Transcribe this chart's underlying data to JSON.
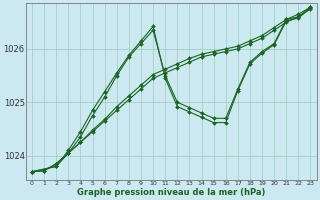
{
  "xlabel": "Graphe pression niveau de la mer (hPa)",
  "bg_color": "#cce8f0",
  "grid_color": "#99ccbb",
  "line_color": "#1a6620",
  "ylim": [
    1023.55,
    1026.85
  ],
  "xlim": [
    -0.5,
    23.5
  ],
  "yticks": [
    1024,
    1025,
    1026
  ],
  "xticks": [
    0,
    1,
    2,
    3,
    4,
    5,
    6,
    7,
    8,
    9,
    10,
    11,
    12,
    13,
    14,
    15,
    16,
    17,
    18,
    19,
    20,
    21,
    22,
    23
  ],
  "series": [
    {
      "x": [
        0,
        1,
        2,
        3,
        4,
        5,
        6,
        7,
        8,
        9,
        10,
        11,
        12,
        13,
        14,
        15,
        16,
        17,
        18,
        19,
        20,
        21,
        22,
        23
      ],
      "y": [
        1023.7,
        1023.72,
        1023.85,
        1024.05,
        1024.25,
        1024.45,
        1024.65,
        1024.85,
        1025.05,
        1025.25,
        1025.45,
        1025.55,
        1025.65,
        1025.75,
        1025.85,
        1025.9,
        1025.95,
        1026.0,
        1026.1,
        1026.2,
        1026.35,
        1026.5,
        1026.6,
        1026.75
      ],
      "marker": true
    },
    {
      "x": [
        0,
        1,
        2,
        3,
        4,
        5,
        6,
        7,
        8,
        9,
        10,
        11,
        12,
        13,
        14,
        15,
        16,
        17,
        18,
        19,
        20,
        21,
        22,
        23
      ],
      "y": [
        1023.7,
        1023.72,
        1023.85,
        1024.05,
        1024.25,
        1024.48,
        1024.68,
        1024.92,
        1025.12,
        1025.32,
        1025.52,
        1025.62,
        1025.72,
        1025.82,
        1025.9,
        1025.95,
        1026.0,
        1026.05,
        1026.15,
        1026.25,
        1026.4,
        1026.55,
        1026.65,
        1026.78
      ],
      "marker": true
    },
    {
      "x": [
        0,
        2,
        3,
        4,
        5,
        6,
        7,
        8,
        9,
        10,
        11,
        12,
        13,
        14,
        15,
        16,
        17,
        18,
        19,
        20,
        21,
        22,
        23
      ],
      "y": [
        1023.7,
        1023.8,
        1024.05,
        1024.35,
        1024.75,
        1025.1,
        1025.5,
        1025.85,
        1026.1,
        1026.35,
        1025.5,
        1025.0,
        1024.9,
        1024.8,
        1024.7,
        1024.7,
        1025.25,
        1025.75,
        1025.95,
        1026.1,
        1026.55,
        1026.6,
        1026.78
      ],
      "marker": true
    },
    {
      "x": [
        0,
        2,
        3,
        4,
        5,
        6,
        7,
        8,
        9,
        10,
        11,
        12,
        13,
        14,
        15,
        16,
        17,
        18,
        19,
        20,
        21,
        22,
        23
      ],
      "y": [
        1023.7,
        1023.8,
        1024.1,
        1024.45,
        1024.85,
        1025.2,
        1025.55,
        1025.88,
        1026.15,
        1026.42,
        1025.45,
        1024.92,
        1024.82,
        1024.72,
        1024.62,
        1024.62,
        1025.22,
        1025.72,
        1025.92,
        1026.08,
        1026.52,
        1026.58,
        1026.76
      ],
      "marker": true
    }
  ]
}
